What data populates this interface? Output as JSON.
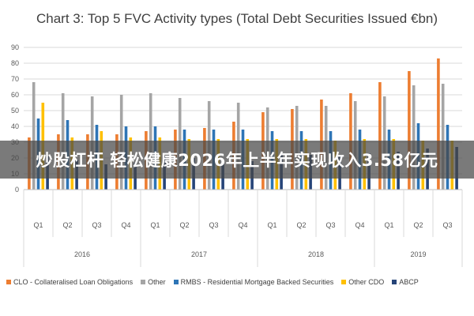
{
  "chart_data": {
    "type": "bar",
    "title": "Chart 3: Top 5 FVC Activity types (Total Debt Securities Issued €bn)",
    "xlabel": "",
    "ylabel": "",
    "ylim": [
      0,
      90
    ],
    "yticks": [
      0,
      10,
      20,
      30,
      40,
      50,
      60,
      70,
      80,
      90
    ],
    "grid": true,
    "legend_position": "bottom",
    "categories": [
      "Q1",
      "Q2",
      "Q3",
      "Q4",
      "Q1",
      "Q2",
      "Q3",
      "Q4",
      "Q1",
      "Q2",
      "Q3",
      "Q4",
      "Q1",
      "Q2",
      "Q3"
    ],
    "year_groups": [
      {
        "label": "2016",
        "count": 4
      },
      {
        "label": "2017",
        "count": 4
      },
      {
        "label": "2018",
        "count": 4
      },
      {
        "label": "2019",
        "count": 3
      }
    ],
    "series": [
      {
        "name": "CLO - Collateralised Loan Obligations",
        "color": "#ED7D31",
        "values": [
          33,
          35,
          35,
          35,
          37,
          38,
          39,
          43,
          49,
          51,
          57,
          61,
          68,
          75,
          83
        ]
      },
      {
        "name": "Other",
        "color": "#A5A5A5",
        "values": [
          68,
          61,
          59,
          60,
          61,
          58,
          56,
          55,
          52,
          53,
          53,
          56,
          59,
          66,
          67
        ]
      },
      {
        "name": "RMBS - Residential Mortgage Backed Securities",
        "color": "#2E75B6",
        "values": [
          45,
          44,
          41,
          40,
          40,
          38,
          38,
          38,
          37,
          37,
          37,
          38,
          38,
          42,
          41
        ]
      },
      {
        "name": "Other CDO",
        "color": "#FFC000",
        "values": [
          55,
          33,
          37,
          33,
          33,
          32,
          32,
          32,
          32,
          32,
          31,
          32,
          32,
          31,
          31
        ]
      },
      {
        "name": "ABCP",
        "color": "#264478",
        "values": [
          21,
          19,
          16,
          17,
          21,
          20,
          19,
          18,
          22,
          22,
          22,
          23,
          24,
          26,
          27
        ]
      }
    ]
  },
  "overlay": {
    "text": "炒股杠杆 轻松健康2026年上半年实现收入3.58亿元"
  }
}
